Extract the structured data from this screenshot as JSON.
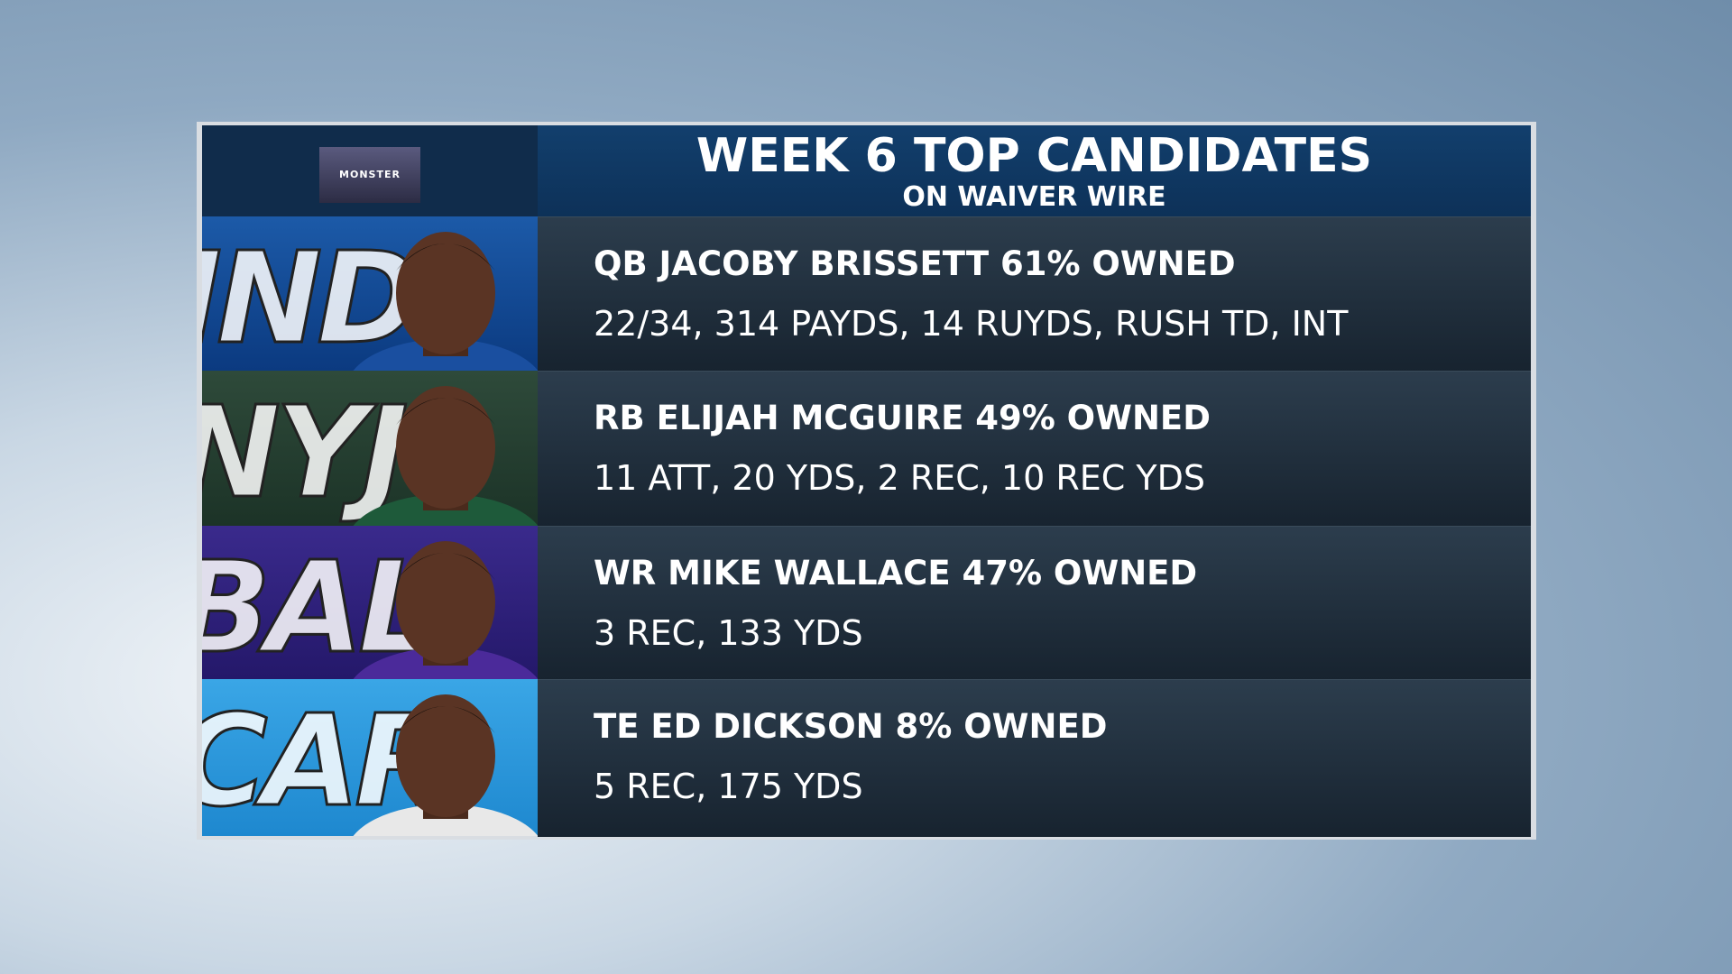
{
  "header": {
    "title": "WEEK 6 TOP CANDIDATES",
    "subtitle": "ON WAIVER WIRE",
    "logo": "MONSTER"
  },
  "rows": [
    {
      "team": "IND",
      "headline": "QB JACOBY BRISSETT 61% OWNED",
      "stats": "22/34, 314 PAYDS, 14 RUYDS, RUSH TD, INT"
    },
    {
      "team": "NYJ",
      "headline": "RB ELIJAH MCGUIRE 49% OWNED",
      "stats": "11 ATT, 20 YDS, 2 REC, 10 REC YDS"
    },
    {
      "team": "BAL",
      "headline": "WR MIKE WALLACE 47% OWNED",
      "stats": "3 REC, 133 YDS"
    },
    {
      "team": "CAR",
      "headline": "TE ED DICKSON 8% OWNED",
      "stats": "5 REC, 175 YDS"
    }
  ]
}
